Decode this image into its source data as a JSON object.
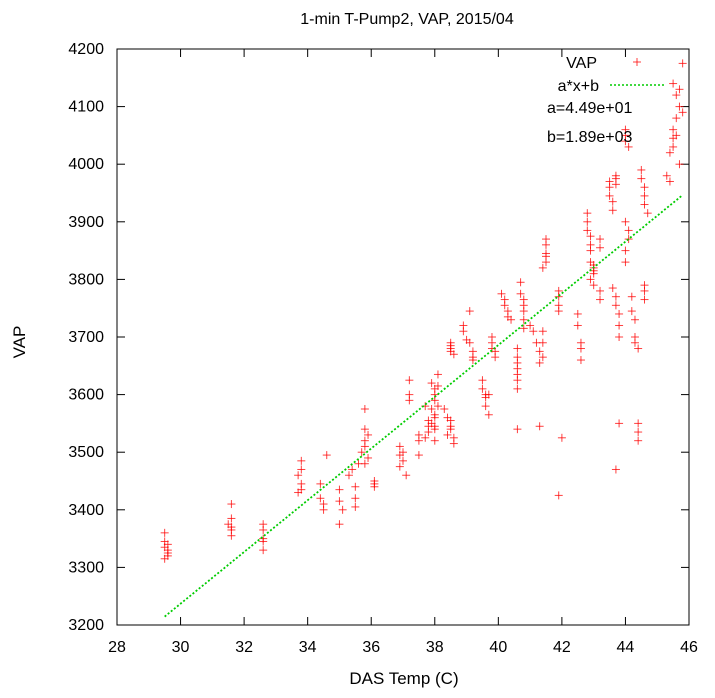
{
  "chart_data": {
    "type": "scatter",
    "title": "1-min T-Pump2, VAP, 2015/04",
    "xlabel": "DAS Temp (C)",
    "ylabel": "VAP",
    "xlim": [
      28,
      46
    ],
    "ylim": [
      3200,
      4200
    ],
    "xticks": [
      28,
      30,
      32,
      34,
      36,
      38,
      40,
      42,
      44,
      46
    ],
    "yticks": [
      3200,
      3300,
      3400,
      3500,
      3600,
      3700,
      3800,
      3900,
      4000,
      4100,
      4200
    ],
    "grid": false,
    "legend_position": "top-right",
    "series": [
      {
        "name": "VAP",
        "marker": "plus",
        "color": "#ff0000",
        "points": [
          [
            29.5,
            3360
          ],
          [
            29.5,
            3345
          ],
          [
            29.5,
            3335
          ],
          [
            29.6,
            3330
          ],
          [
            29.6,
            3325
          ],
          [
            29.6,
            3320
          ],
          [
            29.5,
            3315
          ],
          [
            29.6,
            3340
          ],
          [
            31.6,
            3410
          ],
          [
            31.6,
            3385
          ],
          [
            31.5,
            3375
          ],
          [
            31.6,
            3370
          ],
          [
            31.6,
            3365
          ],
          [
            31.6,
            3355
          ],
          [
            32.6,
            3375
          ],
          [
            32.6,
            3365
          ],
          [
            32.6,
            3350
          ],
          [
            32.6,
            3345
          ],
          [
            32.6,
            3330
          ],
          [
            33.8,
            3485
          ],
          [
            33.8,
            3470
          ],
          [
            33.7,
            3460
          ],
          [
            33.8,
            3445
          ],
          [
            33.8,
            3435
          ],
          [
            33.7,
            3430
          ],
          [
            34.4,
            3445
          ],
          [
            34.4,
            3420
          ],
          [
            34.5,
            3410
          ],
          [
            34.5,
            3400
          ],
          [
            34.6,
            3495
          ],
          [
            35.0,
            3435
          ],
          [
            35.0,
            3415
          ],
          [
            35.1,
            3400
          ],
          [
            35.0,
            3375
          ],
          [
            35.3,
            3460
          ],
          [
            35.4,
            3470
          ],
          [
            35.5,
            3440
          ],
          [
            35.5,
            3420
          ],
          [
            35.5,
            3405
          ],
          [
            35.6,
            3480
          ],
          [
            35.8,
            3575
          ],
          [
            35.8,
            3540
          ],
          [
            35.9,
            3530
          ],
          [
            35.8,
            3520
          ],
          [
            35.8,
            3510
          ],
          [
            35.7,
            3500
          ],
          [
            35.9,
            3490
          ],
          [
            35.8,
            3480
          ],
          [
            36.1,
            3450
          ],
          [
            36.1,
            3445
          ],
          [
            36.1,
            3440
          ],
          [
            36.9,
            3510
          ],
          [
            36.9,
            3495
          ],
          [
            37.0,
            3485
          ],
          [
            36.9,
            3475
          ],
          [
            37.0,
            3500
          ],
          [
            37.1,
            3460
          ],
          [
            37.2,
            3625
          ],
          [
            37.2,
            3600
          ],
          [
            37.2,
            3590
          ],
          [
            37.5,
            3530
          ],
          [
            37.5,
            3520
          ],
          [
            37.5,
            3495
          ],
          [
            37.8,
            3555
          ],
          [
            37.8,
            3545
          ],
          [
            37.8,
            3535
          ],
          [
            37.7,
            3525
          ],
          [
            37.7,
            3580
          ],
          [
            37.9,
            3620
          ],
          [
            38.0,
            3610
          ],
          [
            38.0,
            3600
          ],
          [
            38.0,
            3590
          ],
          [
            37.9,
            3575
          ],
          [
            38.0,
            3565
          ],
          [
            38.0,
            3560
          ],
          [
            37.9,
            3550
          ],
          [
            38.0,
            3545
          ],
          [
            38.0,
            3540
          ],
          [
            38.0,
            3520
          ],
          [
            38.1,
            3635
          ],
          [
            38.1,
            3615
          ],
          [
            38.1,
            3580
          ],
          [
            38.3,
            3575
          ],
          [
            38.4,
            3560
          ],
          [
            38.5,
            3555
          ],
          [
            38.5,
            3545
          ],
          [
            38.5,
            3540
          ],
          [
            38.4,
            3530
          ],
          [
            38.6,
            3525
          ],
          [
            38.6,
            3515
          ],
          [
            38.5,
            3690
          ],
          [
            38.5,
            3685
          ],
          [
            38.5,
            3680
          ],
          [
            38.5,
            3675
          ],
          [
            38.6,
            3670
          ],
          [
            38.9,
            3720
          ],
          [
            38.9,
            3710
          ],
          [
            39.0,
            3695
          ],
          [
            39.1,
            3690
          ],
          [
            39.2,
            3675
          ],
          [
            39.2,
            3665
          ],
          [
            39.2,
            3660
          ],
          [
            39.1,
            3745
          ],
          [
            39.5,
            3625
          ],
          [
            39.5,
            3610
          ],
          [
            39.6,
            3600
          ],
          [
            39.6,
            3595
          ],
          [
            39.6,
            3580
          ],
          [
            39.7,
            3565
          ],
          [
            39.7,
            3600
          ],
          [
            39.8,
            3700
          ],
          [
            39.8,
            3690
          ],
          [
            39.8,
            3680
          ],
          [
            39.9,
            3675
          ],
          [
            39.9,
            3665
          ],
          [
            40.1,
            3775
          ],
          [
            40.2,
            3765
          ],
          [
            40.2,
            3755
          ],
          [
            40.3,
            3745
          ],
          [
            40.3,
            3735
          ],
          [
            40.4,
            3730
          ],
          [
            40.6,
            3680
          ],
          [
            40.6,
            3665
          ],
          [
            40.6,
            3655
          ],
          [
            40.6,
            3645
          ],
          [
            40.6,
            3635
          ],
          [
            40.6,
            3625
          ],
          [
            40.6,
            3610
          ],
          [
            40.6,
            3540
          ],
          [
            40.7,
            3795
          ],
          [
            40.7,
            3775
          ],
          [
            40.8,
            3765
          ],
          [
            40.8,
            3755
          ],
          [
            40.8,
            3745
          ],
          [
            40.8,
            3730
          ],
          [
            40.8,
            3715
          ],
          [
            41.0,
            3720
          ],
          [
            41.1,
            3710
          ],
          [
            41.2,
            3690
          ],
          [
            41.3,
            3675
          ],
          [
            41.5,
            3870
          ],
          [
            41.5,
            3860
          ],
          [
            41.5,
            3845
          ],
          [
            41.5,
            3840
          ],
          [
            41.5,
            3830
          ],
          [
            41.4,
            3820
          ],
          [
            41.4,
            3710
          ],
          [
            41.4,
            3690
          ],
          [
            41.4,
            3665
          ],
          [
            41.3,
            3655
          ],
          [
            41.3,
            3545
          ],
          [
            41.9,
            3780
          ],
          [
            41.9,
            3770
          ],
          [
            41.9,
            3755
          ],
          [
            41.9,
            3745
          ],
          [
            42.0,
            3525
          ],
          [
            41.9,
            3425
          ],
          [
            42.5,
            3740
          ],
          [
            42.5,
            3720
          ],
          [
            42.6,
            3690
          ],
          [
            42.6,
            3680
          ],
          [
            42.6,
            3660
          ],
          [
            42.8,
            3915
          ],
          [
            42.8,
            3900
          ],
          [
            42.8,
            3885
          ],
          [
            42.9,
            3875
          ],
          [
            42.9,
            3860
          ],
          [
            42.9,
            3850
          ],
          [
            42.9,
            3830
          ],
          [
            43.0,
            3825
          ],
          [
            43.0,
            3820
          ],
          [
            43.0,
            3815
          ],
          [
            43.0,
            3810
          ],
          [
            42.9,
            3800
          ],
          [
            43.0,
            3790
          ],
          [
            43.2,
            3870
          ],
          [
            43.2,
            3855
          ],
          [
            43.2,
            3780
          ],
          [
            43.2,
            3765
          ],
          [
            43.5,
            3970
          ],
          [
            43.5,
            3960
          ],
          [
            43.5,
            3945
          ],
          [
            43.6,
            3935
          ],
          [
            43.6,
            3920
          ],
          [
            43.7,
            3980
          ],
          [
            43.7,
            3975
          ],
          [
            43.7,
            3965
          ],
          [
            43.6,
            3785
          ],
          [
            43.7,
            3770
          ],
          [
            43.7,
            3755
          ],
          [
            43.8,
            3740
          ],
          [
            43.8,
            3720
          ],
          [
            43.8,
            3700
          ],
          [
            43.8,
            3550
          ],
          [
            43.7,
            3470
          ],
          [
            44.0,
            4060
          ],
          [
            44.0,
            4050
          ],
          [
            44.0,
            4040
          ],
          [
            44.1,
            4030
          ],
          [
            44.0,
            3900
          ],
          [
            44.1,
            3885
          ],
          [
            44.1,
            3870
          ],
          [
            44.0,
            3850
          ],
          [
            44.0,
            3830
          ],
          [
            44.2,
            3770
          ],
          [
            44.2,
            3745
          ],
          [
            44.3,
            3730
          ],
          [
            44.3,
            3700
          ],
          [
            44.3,
            3690
          ],
          [
            44.4,
            3680
          ],
          [
            44.4,
            3550
          ],
          [
            44.4,
            3535
          ],
          [
            44.4,
            3520
          ],
          [
            44.5,
            3990
          ],
          [
            44.5,
            3975
          ],
          [
            44.6,
            3960
          ],
          [
            44.6,
            3945
          ],
          [
            44.6,
            3930
          ],
          [
            44.7,
            3915
          ],
          [
            44.6,
            3790
          ],
          [
            44.6,
            3780
          ],
          [
            44.6,
            3765
          ],
          [
            45.3,
            3980
          ],
          [
            45.4,
            3970
          ],
          [
            45.4,
            4020
          ],
          [
            45.5,
            4030
          ],
          [
            45.5,
            4045
          ],
          [
            45.5,
            4060
          ],
          [
            45.6,
            4080
          ],
          [
            45.5,
            4140
          ],
          [
            45.6,
            4120
          ],
          [
            45.7,
            4100
          ],
          [
            45.6,
            4050
          ],
          [
            45.7,
            4000
          ],
          [
            45.8,
            4090
          ],
          [
            45.8,
            4175
          ],
          [
            45.7,
            4130
          ]
        ]
      },
      {
        "name": "a*x+b",
        "type": "line",
        "style": "dotted",
        "color": "#00cc00",
        "x_range": [
          29.5,
          45.8
        ]
      }
    ],
    "fit": {
      "a": 44.9,
      "b": 1890,
      "a_label": "a=4.49e+01",
      "b_label": "b=1.89e+03"
    }
  }
}
